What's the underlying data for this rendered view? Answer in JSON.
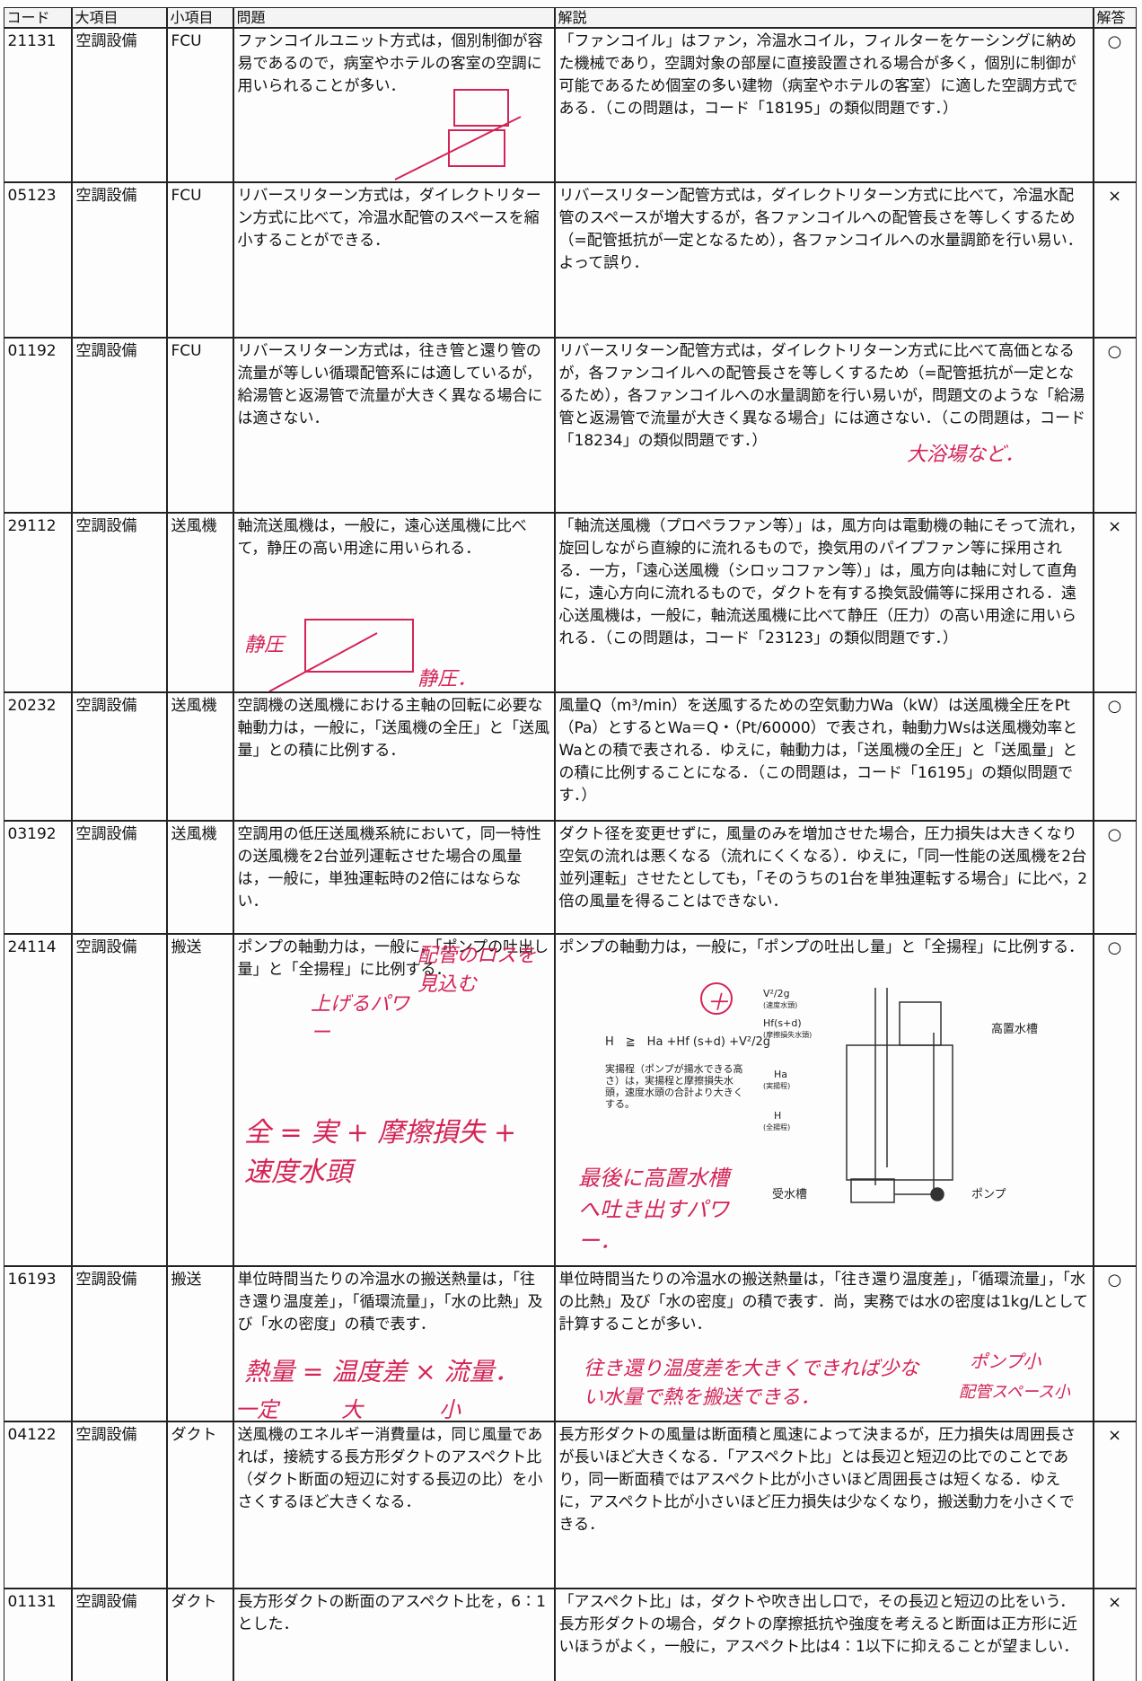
{
  "table": {
    "headers": [
      "コード",
      "大項目",
      "小項目",
      "問題",
      "解説",
      "解答"
    ],
    "rows": [
      {
        "cells": [
          "21131",
          "空調設備",
          "FCU",
          "ファンコイルユニット方式は，個別制御が容易であるので，病室やホテルの客室の空調に用いられることが多い．",
          "「ファンコイル」はファン，冷温水コイル，フィルターをケーシングに納めた機械であり，空調対象の部屋に直接設置される場合が多く，個別に制御が可能であるため個室の多い建物（病室やホテルの客室）に適した空調方式である．（この問題は，コード「18195」の類似問題です．）",
          "○"
        ]
      },
      {
        "cells": [
          "05123",
          "空調設備",
          "FCU",
          "リバースリターン方式は，ダイレクトリターン方式に比べて，冷温水配管のスペースを縮小することができる．",
          "リバースリターン配管方式は，ダイレクトリターン方式に比べて，冷温水配管のスペースが増大するが，各ファンコイルへの配管長さを等しくするため（=配管抵抗が一定となるため），各ファンコイルへの水量調節を行い易い．よって誤り．",
          "×"
        ]
      },
      {
        "cells": [
          "01192",
          "空調設備",
          "FCU",
          "リバースリターン方式は，往き管と還り管の流量が等しい循環配管系には適しているが，給湯管と返湯管で流量が大きく異なる場合には適さない．",
          "リバースリターン配管方式は，ダイレクトリターン方式に比べて高価となるが，各ファンコイルへの配管長さを等しくするため（=配管抵抗が一定となるため），各ファンコイルへの水量調節を行い易いが，問題文のような「給湯管と返湯管で流量が大きく異なる場合」には適さない．（この問題は，コード「18234」の類似問題です．）",
          "○"
        ],
        "notes": [
          "大浴場など．"
        ]
      },
      {
        "cells": [
          "29112",
          "空調設備",
          "送風機",
          "軸流送風機は，一般に，遠心送風機に比べて，静圧の高い用途に用いられる．",
          "「軸流送風機（プロペラファン等）」は，風方向は電動機の軸にそって流れ，旋回しながら直線的に流れるもので，換気用のパイプファン等に採用される．一方，「遠心送風機（シロッコファン等）」は，風方向は軸に対して直角に，遠心方向に流れるもので，ダクトを有する換気設備等に採用される．遠心送風機は，一般に，軸流送風機に比べて静圧（圧力）の高い用途に用いられる．（この問題は，コード「23123」の類似問題です．）",
          "×"
        ],
        "notes": [
          "静圧",
          "静圧．"
        ]
      },
      {
        "cells": [
          "20232",
          "空調設備",
          "送風機",
          "空調機の送風機における主軸の回転に必要な軸動力は，一般に，「送風機の全圧」と「送風量」との積に比例する．",
          "風量Q（m³/min）を送風するための空気動力Wa（kW）は送風機全圧をPt（Pa）とするとWa＝Q・（Pt/60000）で表され，軸動力Wsは送風機効率とWaとの積で表される．ゆえに，軸動力は，「送風機の全圧」と「送風量」との積に比例することになる．（この問題は，コード「16195」の類似問題です．）",
          "○"
        ]
      },
      {
        "cells": [
          "03192",
          "空調設備",
          "送風機",
          "空調用の低圧送風機系統において，同一特性の送風機を2台並列運転させた場合の風量は，一般に，単独運転時の2倍にはならない．",
          "ダクト径を変更せずに，風量のみを増加させた場合，圧力損失は大きくなり空気の流れは悪くなる（流れにくくなる）．ゆえに，「同一性能の送風機を2台並列運転」させたとしても，「そのうちの1台を単独運転する場合」に比べ，2倍の風量を得ることはできない．",
          "○"
        ]
      },
      {
        "cells": [
          "24114",
          "空調設備",
          "搬送",
          "ポンプの軸動力は，一般に，「ポンプの吐出し量」と「全揚程」に比例する．",
          "ポンプの軸動力は，一般に，「ポンプの吐出し量」と「全揚程」に比例する．",
          "○"
        ],
        "notes": [
          "上げるパワー",
          "配管のロスを見込む",
          "＋",
          "全 = 実 + 摩擦損失 + 速度水頭",
          "最後に高置水槽へ吐き出すパワー．"
        ],
        "figure": {
          "formula": "H　≧　Ha +Hf (s+d) +V²/2g",
          "caption": "実揚程（ポンプが揚水できる高さ）は，実揚程と摩擦損失水頭，速度水頭の合計より大きくする。",
          "labels": [
            "V²/2g",
            "(速度水頭)",
            "Hf(s+d)",
            "(摩擦損失水頭)",
            "Ha",
            "(実揚程)",
            "H",
            "(全揚程)",
            "高置水槽",
            "受水槽",
            "ポンプ"
          ]
        }
      },
      {
        "cells": [
          "16193",
          "空調設備",
          "搬送",
          "単位時間当たりの冷温水の搬送熱量は，「往き還り温度差」，「循環流量」，「水の比熱」及び「水の密度」の積で表す．",
          "単位時間当たりの冷温水の搬送熱量は，「往き還り温度差」，「循環流量」，「水の比熱」及び「水の密度」の積で表す．尚，実務では水の密度は1kg/Lとして計算することが多い．",
          "○"
        ],
        "notes": [
          "熱量 = 温度差 × 流量．",
          "一定",
          "大",
          "小",
          "往き還り温度差を大きくできれば少ない水量で熱を搬送できる．",
          "ポンプ小",
          "配管スペース小"
        ]
      },
      {
        "cells": [
          "04122",
          "空調設備",
          "ダクト",
          "送風機のエネルギー消費量は，同じ風量であれば，接続する長方形ダクトのアスペクト比（ダクト断面の短辺に対する長辺の比）を小さくするほど大きくなる．",
          "長方形ダクトの風量は断面積と風速によって決まるが，圧力損失は周囲長さが長いほど大きくなる．「アスペクト比」とは長辺と短辺の比でのことであり，同一断面積ではアスペクト比が小さいほど周囲長さは短くなる．ゆえに，アスペクト比が小さいほど圧力損失は少なくなり，搬送動力を小さくできる．",
          "×"
        ]
      },
      {
        "cells": [
          "01131",
          "空調設備",
          "ダクト",
          "長方形ダクトの断面のアスペクト比を，6：1とした．",
          "「アスペクト比」は，ダクトや吹き出し口で，その長辺と短辺の比をいう．長方形ダクトの場合，ダクトの摩擦抵抗や強度を考えると断面は正方形に近いほうがよく，一般に，アスペクト比は4：1以下に抑えることが望ましい．",
          "×"
        ]
      }
    ]
  }
}
